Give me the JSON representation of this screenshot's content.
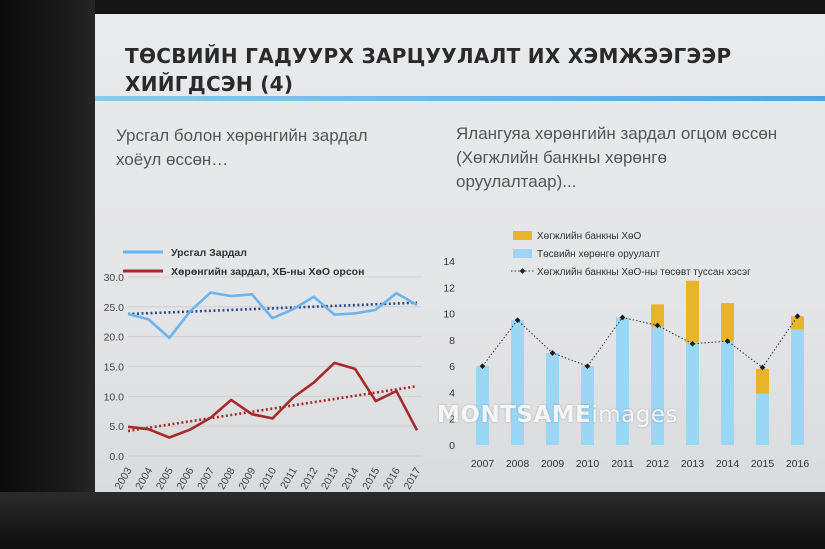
{
  "slide": {
    "title": "ТӨСВИЙН ГАДУУРХ ЗАРЦУУЛАЛТ ИХ ХЭМЖЭЭГЭЭР ХИЙГДСЭН (4)",
    "left_subtitle": "Урсгал болон хөрөнгийн зардал хоёул өссөн…",
    "right_subtitle": "Ялангуяа хөрөнгийн зардал огцом өссөн (Хөгжлийн банкны хөрөнгө оруулалтаар)...",
    "watermark_a": "MONTSAME",
    "watermark_b": "images"
  },
  "colors": {
    "current": "#6ab4f0",
    "capital": "#a52a2a",
    "trend": "#2e4a8a",
    "budget_bar": "#9bd6f4",
    "dbm_bar": "#e8b52a",
    "dotted_line": "#333333"
  },
  "chart_data": [
    {
      "type": "line",
      "x": [
        "2003",
        "2004",
        "2005",
        "2006",
        "2007",
        "2008",
        "2009",
        "2010",
        "2011",
        "2012",
        "2013",
        "2014",
        "2015",
        "2016",
        "2017"
      ],
      "ylim": [
        0,
        30
      ],
      "yticks": [
        "0.0",
        "5.0",
        "10.0",
        "15.0",
        "20.0",
        "25.0",
        "30.0"
      ],
      "grid": true,
      "legend_position": "top",
      "series": [
        {
          "name": "Урсгал Зардал",
          "values": [
            23.8,
            22.9,
            19.8,
            24.2,
            27.4,
            26.8,
            27.1,
            23.1,
            24.6,
            26.7,
            23.7,
            23.9,
            24.5,
            27.3,
            25.3
          ]
        },
        {
          "name": "Хөрөнгийн зардал, ХБ-ны ХөО орсон",
          "values": [
            4.9,
            4.5,
            3.1,
            4.4,
            6.4,
            9.4,
            7.0,
            6.3,
            9.8,
            12.3,
            15.6,
            14.6,
            9.2,
            10.9,
            4.3
          ]
        }
      ],
      "trendlines": [
        {
          "of": "Урсгал Зардал",
          "start": 23.8,
          "end": 25.7
        },
        {
          "of": "Хөрөнгийн зардал, ХБ-ны ХөО орсон",
          "start": 4.2,
          "end": 11.7
        }
      ]
    },
    {
      "type": "bar",
      "stacked": true,
      "categories": [
        "2007",
        "2008",
        "2009",
        "2010",
        "2011",
        "2012",
        "2013",
        "2014",
        "2015",
        "2016"
      ],
      "ylim": [
        0,
        14
      ],
      "yticks": [
        "0",
        "2",
        "4",
        "6",
        "8",
        "10",
        "12",
        "14"
      ],
      "legend_position": "top",
      "series": [
        {
          "name": "Төсвийн хөрөнгө оруулалт",
          "values": [
            6.0,
            9.5,
            7.0,
            6.0,
            9.7,
            9.0,
            7.8,
            7.9,
            3.9,
            8.8
          ]
        },
        {
          "name": "Хөгжлийн банкны ХөО",
          "values": [
            0.0,
            0.0,
            0.0,
            0.0,
            0.0,
            1.7,
            4.7,
            2.9,
            1.9,
            1.0
          ]
        }
      ],
      "line": {
        "name": "Хөгжлийн банкны ХөО-ны төсөвт туссан хэсэг",
        "values": [
          6.0,
          9.5,
          7.0,
          6.0,
          9.7,
          9.1,
          7.7,
          7.9,
          5.9,
          9.8
        ]
      }
    }
  ]
}
